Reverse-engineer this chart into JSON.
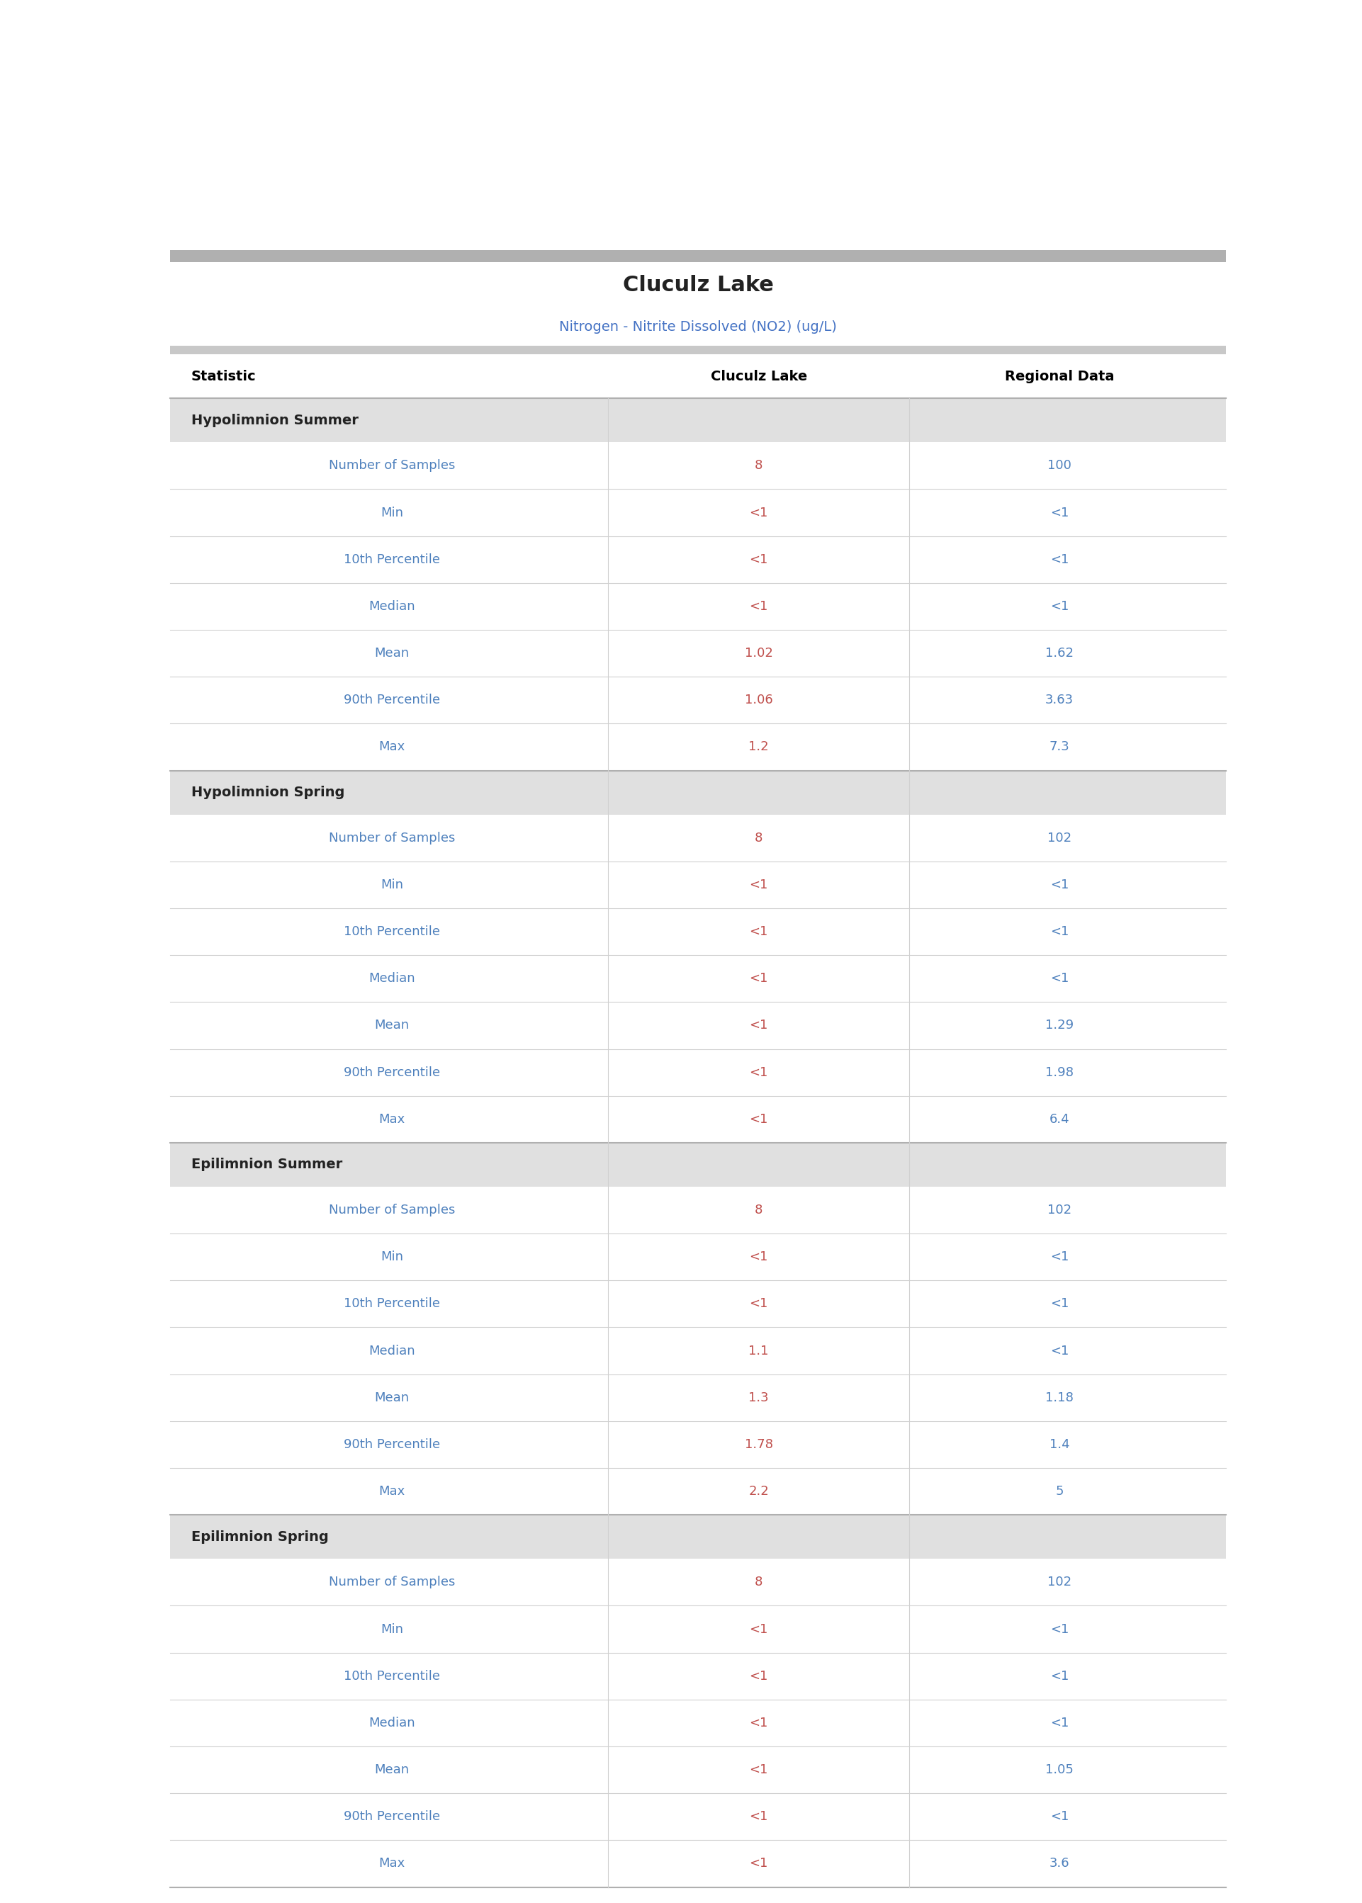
{
  "title": "Cluculz Lake",
  "subtitle": "Nitrogen - Nitrite Dissolved (NO2) (ug/L)",
  "columns": [
    "Statistic",
    "Cluculz Lake",
    "Regional Data"
  ],
  "data_text_color_lake": "#c0504d",
  "data_text_color_regional": "#4f81bd",
  "statistic_text_color": "#4f81bd",
  "sections": [
    {
      "name": "Hypolimnion Summer",
      "rows": [
        [
          "Number of Samples",
          "8",
          "100"
        ],
        [
          "Min",
          "<1",
          "<1"
        ],
        [
          "10th Percentile",
          "<1",
          "<1"
        ],
        [
          "Median",
          "<1",
          "<1"
        ],
        [
          "Mean",
          "1.02",
          "1.62"
        ],
        [
          "90th Percentile",
          "1.06",
          "3.63"
        ],
        [
          "Max",
          "1.2",
          "7.3"
        ]
      ]
    },
    {
      "name": "Hypolimnion Spring",
      "rows": [
        [
          "Number of Samples",
          "8",
          "102"
        ],
        [
          "Min",
          "<1",
          "<1"
        ],
        [
          "10th Percentile",
          "<1",
          "<1"
        ],
        [
          "Median",
          "<1",
          "<1"
        ],
        [
          "Mean",
          "<1",
          "1.29"
        ],
        [
          "90th Percentile",
          "<1",
          "1.98"
        ],
        [
          "Max",
          "<1",
          "6.4"
        ]
      ]
    },
    {
      "name": "Epilimnion Summer",
      "rows": [
        [
          "Number of Samples",
          "8",
          "102"
        ],
        [
          "Min",
          "<1",
          "<1"
        ],
        [
          "10th Percentile",
          "<1",
          "<1"
        ],
        [
          "Median",
          "1.1",
          "<1"
        ],
        [
          "Mean",
          "1.3",
          "1.18"
        ],
        [
          "90th Percentile",
          "1.78",
          "1.4"
        ],
        [
          "Max",
          "2.2",
          "5"
        ]
      ]
    },
    {
      "name": "Epilimnion Spring",
      "rows": [
        [
          "Number of Samples",
          "8",
          "102"
        ],
        [
          "Min",
          "<1",
          "<1"
        ],
        [
          "10th Percentile",
          "<1",
          "<1"
        ],
        [
          "Median",
          "<1",
          "<1"
        ],
        [
          "Mean",
          "<1",
          "1.05"
        ],
        [
          "90th Percentile",
          "<1",
          "<1"
        ],
        [
          "Max",
          "<1",
          "3.6"
        ]
      ]
    }
  ]
}
